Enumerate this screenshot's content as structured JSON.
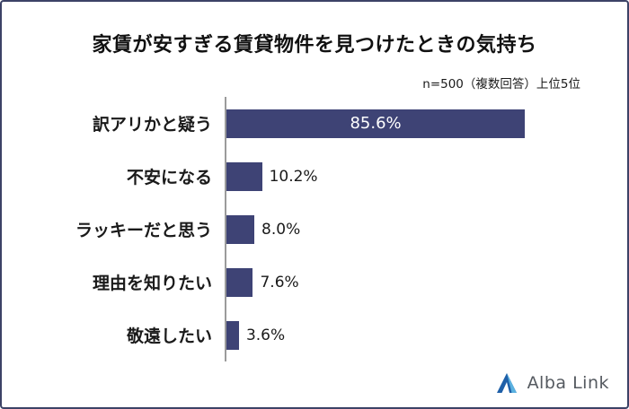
{
  "logo": {
    "text": "Alba Link"
  },
  "chart_data": {
    "type": "bar",
    "orientation": "horizontal",
    "title": "家賃が安すぎる賃貸物件を見つけたときの気持ち",
    "note": "n=500（複数回答）上位5位",
    "categories": [
      "訳アリかと疑う",
      "不安になる",
      "ラッキーだと思う",
      "理由を知りたい",
      "敬遠したい"
    ],
    "values": [
      85.6,
      10.2,
      8.0,
      7.6,
      3.6
    ],
    "value_labels": [
      "85.6%",
      "10.2%",
      "8.0%",
      "7.6%",
      "3.6%"
    ],
    "xlim": [
      0,
      100
    ],
    "bar_color": "#3e4375",
    "axis_line_color": "#9b9b9b",
    "legend": "none",
    "grid": false
  }
}
